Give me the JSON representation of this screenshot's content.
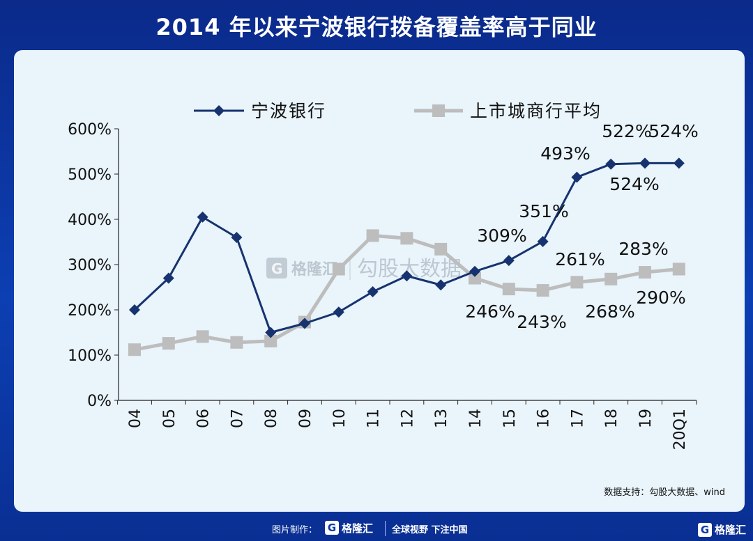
{
  "title": "2014 年以来宁波银行拨备覆盖率高于同业",
  "chart_data": {
    "type": "line",
    "title": "2014 年以来宁波银行拨备覆盖率高于同业",
    "categories": [
      "04",
      "05",
      "06",
      "07",
      "08",
      "09",
      "10",
      "11",
      "12",
      "13",
      "14",
      "15",
      "16",
      "17",
      "18",
      "19",
      "20Q1"
    ],
    "ylim": [
      0,
      600
    ],
    "yticks": [
      "0%",
      "100%",
      "200%",
      "300%",
      "400%",
      "500%",
      "600%"
    ],
    "series": [
      {
        "name": "宁波银行",
        "color": "#17336f",
        "marker": "diamond",
        "values": [
          200,
          270,
          405,
          360,
          150,
          170,
          195,
          240,
          275,
          255,
          285,
          309,
          351,
          493,
          522,
          524,
          524
        ]
      },
      {
        "name": "上市城商行平均",
        "color": "#bdbdbd",
        "marker": "square",
        "values": [
          112,
          126,
          141,
          128,
          131,
          173,
          290,
          364,
          358,
          334,
          270,
          246,
          243,
          261,
          268,
          283,
          290
        ]
      }
    ],
    "annotations": [
      "309%",
      "351%",
      "493%",
      "522%",
      "524%",
      "524%",
      "261%",
      "283%",
      "246%",
      "243%",
      "268%",
      "290%"
    ]
  },
  "watermark": {
    "brand": "格隆汇",
    "sub": "勾股大数据"
  },
  "source": "数据支持：勾股大数据、wind",
  "footer": {
    "made_by": "图片制作：",
    "brand": "格隆汇",
    "slogan": "全球视野 下注中国"
  },
  "corner": {
    "brand": "格隆汇",
    "icon": "G"
  }
}
